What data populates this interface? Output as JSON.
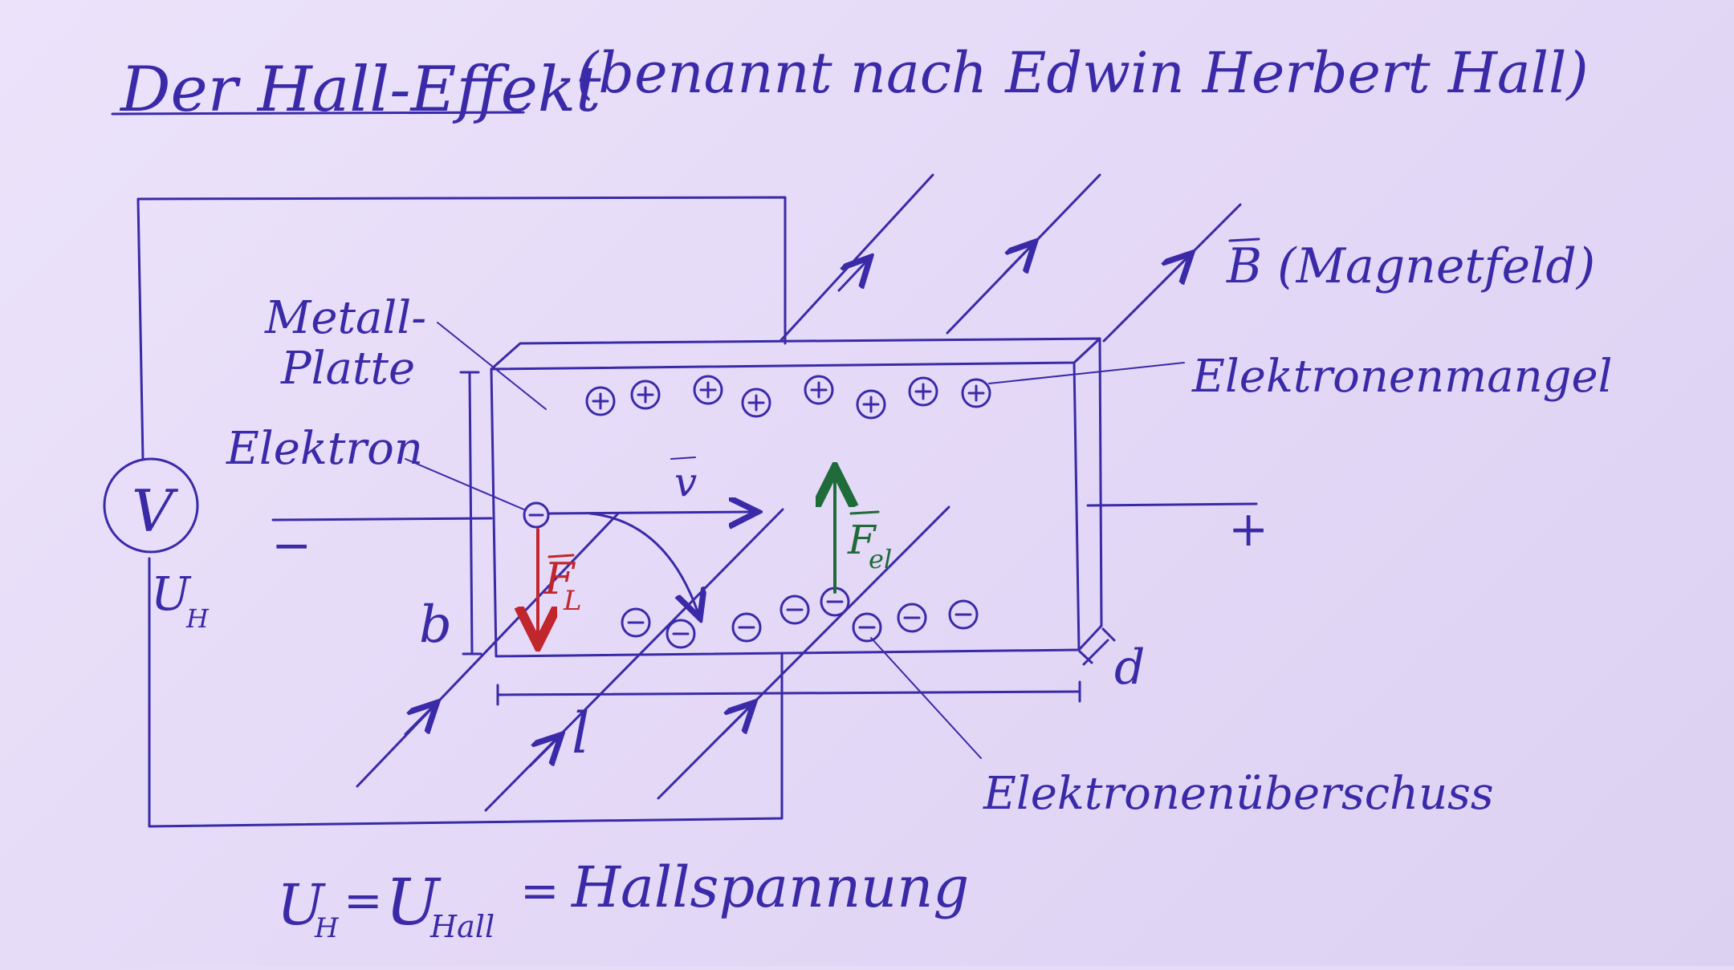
{
  "title": "Der Hall-Effekt",
  "subtitle": "(benannt nach Edwin Herbert Hall)",
  "labels": {
    "b_field": "B (Magnetfeld)",
    "b_vector": "B",
    "metal_plate_line1": "Metall-",
    "metal_plate_line2": "Platte",
    "electron": "Elektron",
    "electron_deficit": "Elektronenmangel",
    "electron_excess": "Elektronenüberschuss",
    "velocity": "v",
    "lorentz_force": "F",
    "lorentz_sub": "L",
    "electric_force": "F",
    "electric_sub": "el",
    "width": "b",
    "length": "l",
    "thickness": "d",
    "minus_terminal": "−",
    "plus_terminal": "+",
    "voltmeter": "V",
    "hall_voltage_symbol": "U",
    "hall_voltage_sub": "H",
    "plus_charge": "+",
    "minus_charge": "−"
  },
  "formula": {
    "lhs": "U",
    "lhs_sub": "H",
    "eq1": "=",
    "mid": "U",
    "mid_sub": "Hall",
    "eq2": "=",
    "rhs": "Hallspannung"
  },
  "colors": {
    "ink": "#3a2aa8",
    "lorentz": "#c0262c",
    "electric": "#1f6b3a",
    "board": "#e6dcf7"
  }
}
